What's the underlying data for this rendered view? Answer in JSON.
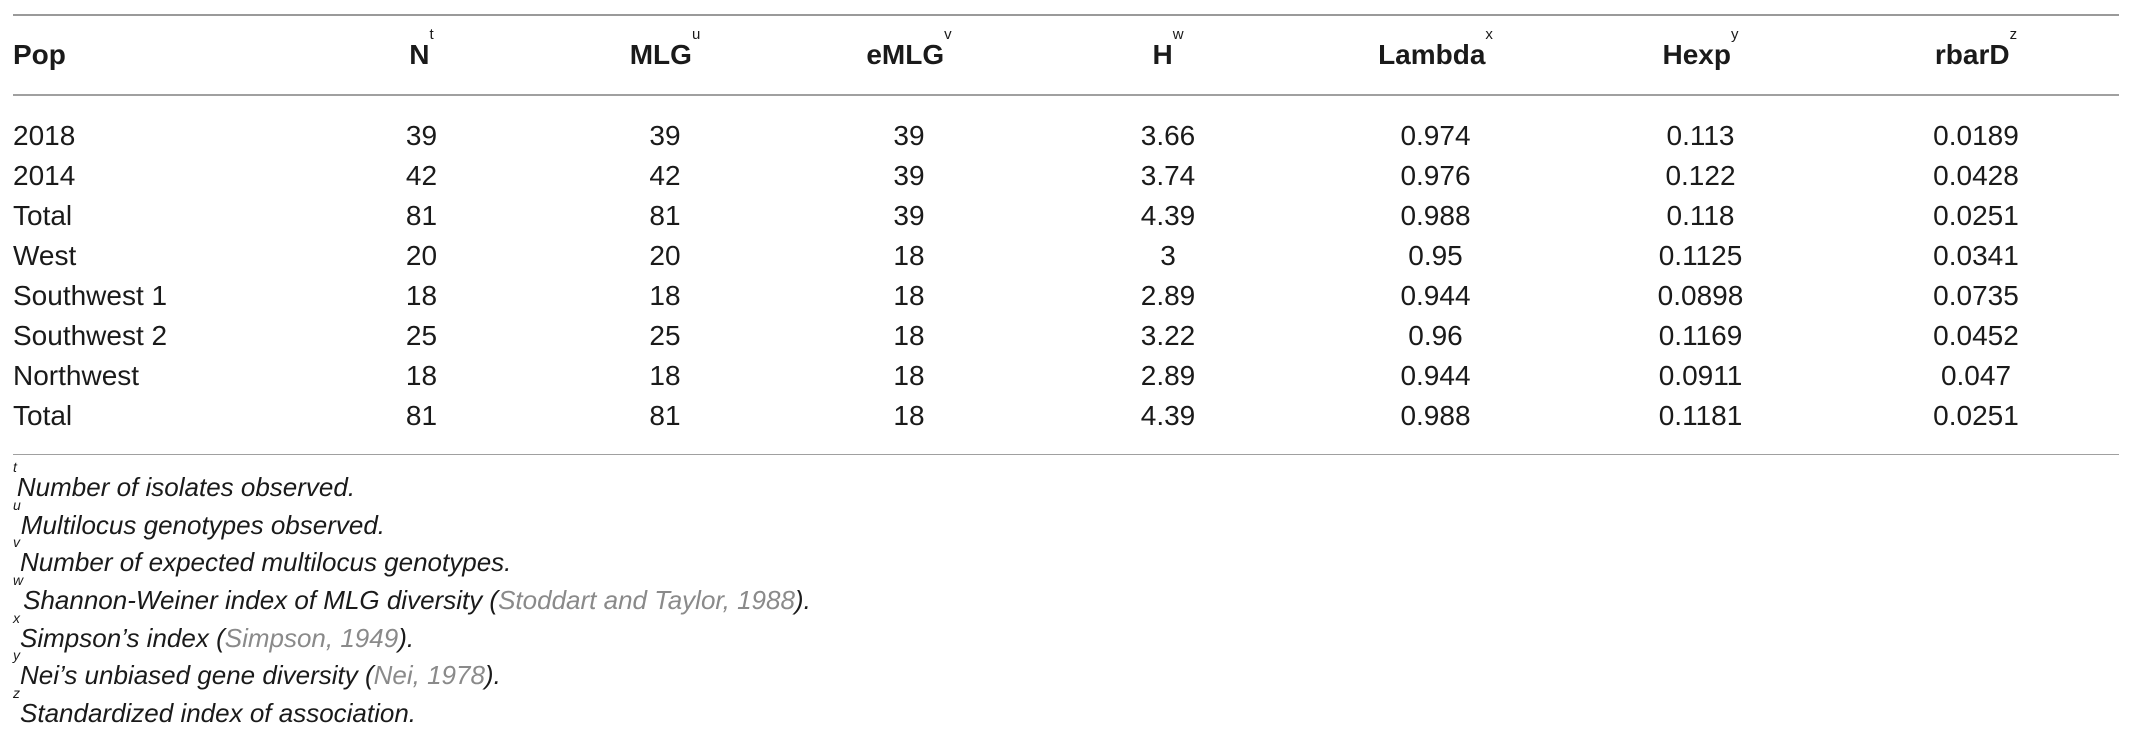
{
  "table": {
    "headers": [
      {
        "label": "Pop",
        "sup": ""
      },
      {
        "label": "N",
        "sup": "t"
      },
      {
        "label": "MLG",
        "sup": "u"
      },
      {
        "label": "eMLG",
        "sup": "v"
      },
      {
        "label": "H",
        "sup": "w"
      },
      {
        "label": "Lambda",
        "sup": "x"
      },
      {
        "label": "Hexp",
        "sup": "y"
      },
      {
        "label": "rbarD",
        "sup": "z"
      }
    ],
    "rows": [
      [
        "2018",
        "39",
        "39",
        "39",
        "3.66",
        "0.974",
        "0.113",
        "0.0189"
      ],
      [
        "2014",
        "42",
        "42",
        "39",
        "3.74",
        "0.976",
        "0.122",
        "0.0428"
      ],
      [
        "Total",
        "81",
        "81",
        "39",
        "4.39",
        "0.988",
        "0.118",
        "0.0251"
      ],
      [
        "West",
        "20",
        "20",
        "18",
        "3",
        "0.95",
        "0.1125",
        "0.0341"
      ],
      [
        "Southwest 1",
        "18",
        "18",
        "18",
        "2.89",
        "0.944",
        "0.0898",
        "0.0735"
      ],
      [
        "Southwest 2",
        "25",
        "25",
        "18",
        "3.22",
        "0.96",
        "0.1169",
        "0.0452"
      ],
      [
        "Northwest",
        "18",
        "18",
        "18",
        "2.89",
        "0.944",
        "0.0911",
        "0.047"
      ],
      [
        "Total",
        "81",
        "81",
        "18",
        "4.39",
        "0.988",
        "0.1181",
        "0.0251"
      ]
    ]
  },
  "footnotes": [
    {
      "mark": "t",
      "text": "Number of isolates observed.",
      "cite": "",
      "after": ""
    },
    {
      "mark": "u",
      "text": "Multilocus genotypes observed.",
      "cite": "",
      "after": ""
    },
    {
      "mark": "v",
      "text": "Number of expected multilocus genotypes.",
      "cite": "",
      "after": ""
    },
    {
      "mark": "w",
      "text": "Shannon-Weiner index of MLG diversity (",
      "cite": "Stoddart and Taylor, 1988",
      "after": ")."
    },
    {
      "mark": "x",
      "text": "Simpson’s index (",
      "cite": "Simpson, 1949",
      "after": ")."
    },
    {
      "mark": "y",
      "text": "Nei’s unbiased gene diversity (",
      "cite": "Nei, 1978",
      "after": ")."
    },
    {
      "mark": "z",
      "text": "Standardized index of association.",
      "cite": "",
      "after": ""
    }
  ]
}
